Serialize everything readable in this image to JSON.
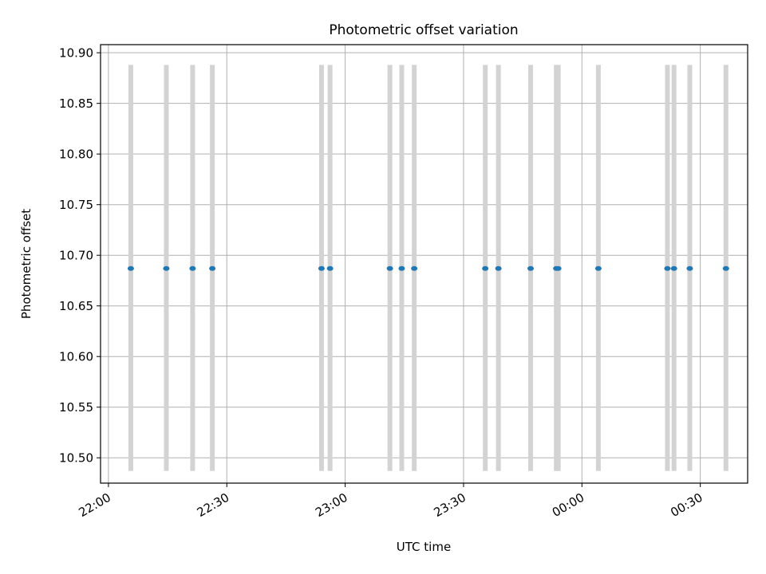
{
  "chart_data": {
    "type": "scatter",
    "title": "Photometric offset variation",
    "xlabel": "UTC time",
    "ylabel": "Photometric offset",
    "x_axis": {
      "type": "time",
      "start": "2024-01-01T21:58:00",
      "end": "2024-01-02T00:42:00",
      "ticks": [
        {
          "t": "2024-01-01T22:00:00",
          "label": "22:00"
        },
        {
          "t": "2024-01-01T22:30:00",
          "label": "22:30"
        },
        {
          "t": "2024-01-01T23:00:00",
          "label": "23:00"
        },
        {
          "t": "2024-01-01T23:30:00",
          "label": "23:30"
        },
        {
          "t": "2024-01-02T00:00:00",
          "label": "00:00"
        },
        {
          "t": "2024-01-02T00:30:00",
          "label": "00:30"
        }
      ]
    },
    "ylim": [
      10.475,
      10.908
    ],
    "y_ticks": [
      "10.50",
      "10.55",
      "10.60",
      "10.65",
      "10.70",
      "10.75",
      "10.80",
      "10.85",
      "10.90"
    ],
    "grid": true,
    "error_range": [
      10.487,
      10.888
    ],
    "series": [
      {
        "color": "#1f77b4",
        "errorbar_color": "#d3d3d3",
        "points": [
          {
            "x": "2024-01-01T22:05:40",
            "y": 10.687
          },
          {
            "x": "2024-01-01T22:14:40",
            "y": 10.687
          },
          {
            "x": "2024-01-01T22:21:20",
            "y": 10.687
          },
          {
            "x": "2024-01-01T22:26:20",
            "y": 10.687
          },
          {
            "x": "2024-01-01T22:54:00",
            "y": 10.687
          },
          {
            "x": "2024-01-01T22:56:10",
            "y": 10.687
          },
          {
            "x": "2024-01-01T23:11:20",
            "y": 10.687
          },
          {
            "x": "2024-01-01T23:14:20",
            "y": 10.687
          },
          {
            "x": "2024-01-01T23:17:30",
            "y": 10.687
          },
          {
            "x": "2024-01-01T23:35:30",
            "y": 10.687
          },
          {
            "x": "2024-01-01T23:38:50",
            "y": 10.687
          },
          {
            "x": "2024-01-01T23:47:00",
            "y": 10.687
          },
          {
            "x": "2024-01-01T23:53:30",
            "y": 10.687
          },
          {
            "x": "2024-01-01T23:54:00",
            "y": 10.687
          },
          {
            "x": "2024-01-02T00:04:10",
            "y": 10.687
          },
          {
            "x": "2024-01-02T00:21:40",
            "y": 10.687
          },
          {
            "x": "2024-01-02T00:23:20",
            "y": 10.687
          },
          {
            "x": "2024-01-02T00:27:20",
            "y": 10.687
          },
          {
            "x": "2024-01-02T00:36:30",
            "y": 10.687
          }
        ]
      }
    ]
  }
}
